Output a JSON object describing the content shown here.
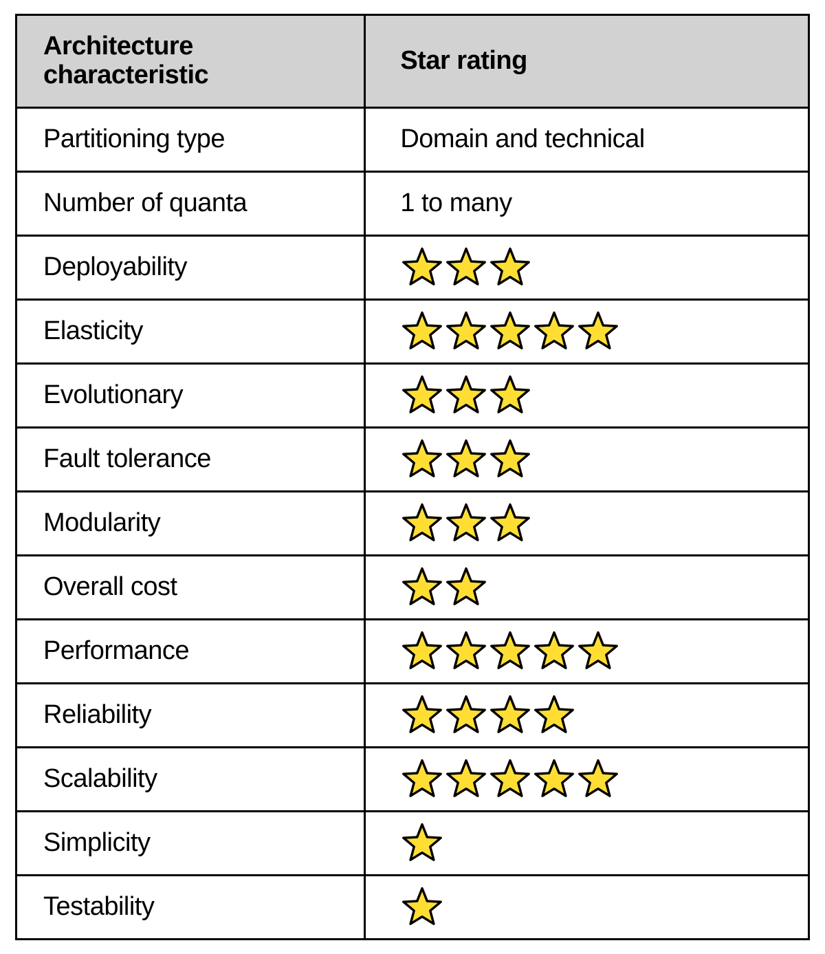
{
  "table": {
    "type": "table",
    "header_bg": "#d2d2d2",
    "border_color": "#000000",
    "star_fill": "#ffde34",
    "star_stroke": "#000000",
    "columns": [
      "Architecture characteristic",
      "Star rating"
    ],
    "rows": [
      {
        "label": "Partitioning type",
        "kind": "text",
        "value": "Domain and technical"
      },
      {
        "label": "Number of quanta",
        "kind": "text",
        "value": "1 to many"
      },
      {
        "label": "Deployability",
        "kind": "stars",
        "count": 3
      },
      {
        "label": "Elasticity",
        "kind": "stars",
        "count": 5
      },
      {
        "label": "Evolutionary",
        "kind": "stars",
        "count": 3
      },
      {
        "label": "Fault tolerance",
        "kind": "stars",
        "count": 3
      },
      {
        "label": "Modularity",
        "kind": "stars",
        "count": 3
      },
      {
        "label": "Overall cost",
        "kind": "stars",
        "count": 2
      },
      {
        "label": "Performance",
        "kind": "stars",
        "count": 5
      },
      {
        "label": "Reliability",
        "kind": "stars",
        "count": 4
      },
      {
        "label": "Scalability",
        "kind": "stars",
        "count": 5
      },
      {
        "label": "Simplicity",
        "kind": "stars",
        "count": 1
      },
      {
        "label": "Testability",
        "kind": "stars",
        "count": 1
      }
    ]
  }
}
